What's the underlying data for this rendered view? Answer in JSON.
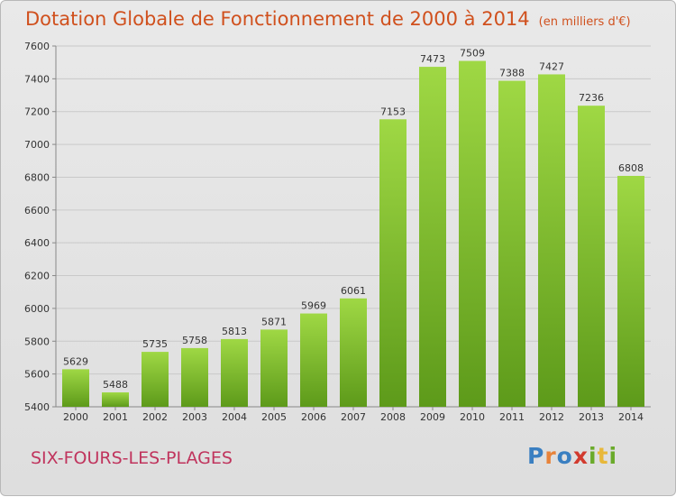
{
  "header": {
    "title": "Dotation Globale de Fonctionnement de 2000 à 2014",
    "subtitle": "(en milliers d'€)"
  },
  "footer": {
    "city": "SIX-FOURS-LES-PLAGES",
    "logo_letters": [
      "P",
      "r",
      "o",
      "x",
      "i",
      "t",
      "i"
    ],
    "logo_colors": [
      "#3a7fc1",
      "#e8833a",
      "#3a7fc1",
      "#d23a2e",
      "#6aaa2a",
      "#e8b83a",
      "#6aaa2a"
    ]
  },
  "chart_data": {
    "type": "bar",
    "title": "Dotation Globale de Fonctionnement de 2000 à 2014",
    "xlabel": "",
    "ylabel": "",
    "categories": [
      "2000",
      "2001",
      "2002",
      "2003",
      "2004",
      "2005",
      "2006",
      "2007",
      "2008",
      "2009",
      "2010",
      "2011",
      "2012",
      "2013",
      "2014"
    ],
    "values": [
      5629,
      5488,
      5735,
      5758,
      5813,
      5871,
      5969,
      6061,
      7153,
      7473,
      7509,
      7388,
      7427,
      7236,
      6808
    ],
    "ylim": [
      5400,
      7600
    ],
    "yticks": [
      5400,
      5600,
      5800,
      6000,
      6200,
      6400,
      6600,
      6800,
      7000,
      7200,
      7400,
      7600
    ],
    "grid": true,
    "bar_color": "#7cbd2e"
  }
}
